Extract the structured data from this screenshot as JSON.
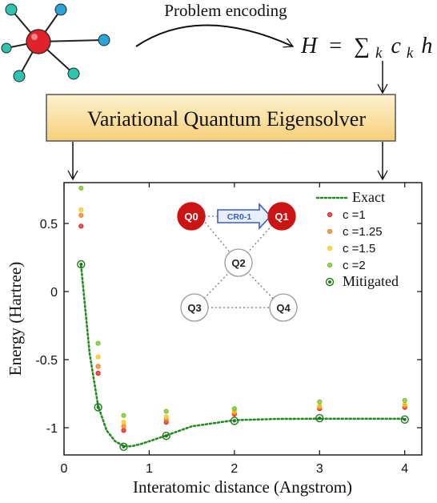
{
  "diagram": {
    "encoding_label": "Problem encoding",
    "hamiltonian": {
      "lhs": "H",
      "eq": "=",
      "sum": "∑",
      "sub": "k",
      "c": "c",
      "h": "h"
    },
    "vqe_label": "Variational Quantum Eigensolver",
    "colors": {
      "vqe_fill_top": "#fdf2d0",
      "vqe_fill_bottom": "#f6cf78",
      "vqe_border": "#555555"
    }
  },
  "molecule": {
    "center_color": "#e0222a",
    "atoms": [
      {
        "color": "#2dc4b2"
      },
      {
        "color": "#2aa4d8"
      },
      {
        "color": "#2dc4b2"
      },
      {
        "color": "#2aa4d8"
      },
      {
        "color": "#2dc4b2"
      },
      {
        "color": "#2dc4b2"
      }
    ]
  },
  "chart_data": {
    "type": "scatter",
    "title": "",
    "xlabel": "Interatomic distance (Angstrom)",
    "ylabel": "Energy (Hartree)",
    "xlim": [
      0,
      4.2
    ],
    "ylim": [
      -1.2,
      0.8
    ],
    "xticks": [
      0,
      1,
      2,
      3,
      4
    ],
    "yticks": [
      -1,
      -0.5,
      0,
      0.5
    ],
    "xtick_labels": [
      "0",
      "1",
      "2",
      "3",
      "4"
    ],
    "ytick_labels": [
      "-1",
      "-0.5",
      "0",
      "0.5"
    ],
    "grid": false,
    "legend": "top-right",
    "series": [
      {
        "name": "Exact",
        "type": "line",
        "style": "dotted",
        "color": "#228b22",
        "x": [
          0.2,
          0.3,
          0.4,
          0.5,
          0.6,
          0.7,
          0.75,
          0.8,
          0.9,
          1.0,
          1.2,
          1.5,
          2.0,
          2.5,
          3.0,
          3.5,
          4.0
        ],
        "y": [
          0.19,
          -0.45,
          -0.84,
          -1.02,
          -1.1,
          -1.133,
          -1.137,
          -1.135,
          -1.12,
          -1.1,
          -1.057,
          -0.99,
          -0.945,
          -0.935,
          -0.934,
          -0.934,
          -0.934
        ]
      },
      {
        "name": "c =1",
        "type": "scatter",
        "color": "#e02020",
        "x": [
          0.2,
          0.4,
          0.7,
          1.2,
          2.0,
          3.0,
          4.0
        ],
        "y": [
          0.48,
          -0.6,
          -1.02,
          -0.96,
          -0.9,
          -0.86,
          -0.85
        ]
      },
      {
        "name": "c =1.25",
        "type": "scatter",
        "color": "#f07f1f",
        "x": [
          0.2,
          0.4,
          0.7,
          1.2,
          2.0,
          3.0,
          4.0
        ],
        "y": [
          0.56,
          -0.55,
          -0.99,
          -0.94,
          -0.89,
          -0.85,
          -0.84
        ]
      },
      {
        "name": "c =1.5",
        "type": "scatter",
        "color": "#f6c81e",
        "x": [
          0.2,
          0.4,
          0.7,
          1.2,
          2.0,
          3.0,
          4.0
        ],
        "y": [
          0.6,
          -0.48,
          -0.96,
          -0.92,
          -0.88,
          -0.84,
          -0.83
        ]
      },
      {
        "name": "c =2",
        "type": "scatter",
        "color": "#77c228",
        "x": [
          0.2,
          0.4,
          0.7,
          1.2,
          2.0,
          3.0,
          4.0
        ],
        "y": [
          0.76,
          -0.38,
          -0.91,
          -0.88,
          -0.86,
          -0.81,
          -0.8
        ]
      },
      {
        "name": "Mitigated",
        "type": "scatter",
        "color": "#1e7a1e",
        "x": [
          0.2,
          0.4,
          0.7,
          1.2,
          2.0,
          3.0,
          4.0
        ],
        "y": [
          0.2,
          -0.85,
          -1.14,
          -1.06,
          -0.95,
          -0.93,
          -0.94
        ]
      }
    ]
  },
  "inset": {
    "qubits": [
      {
        "id": "Q0",
        "label": "Q0",
        "active": true
      },
      {
        "id": "Q1",
        "label": "Q1",
        "active": true
      },
      {
        "id": "Q2",
        "label": "Q2",
        "active": false
      },
      {
        "id": "Q3",
        "label": "Q3",
        "active": false
      },
      {
        "id": "Q4",
        "label": "Q4",
        "active": false
      }
    ],
    "gate_label": "CR0-1",
    "colors": {
      "active": "#cc1414",
      "inactive": "#ffffff",
      "gate_stroke": "#3a5bc7",
      "gate_fill": "#e8efff"
    }
  }
}
